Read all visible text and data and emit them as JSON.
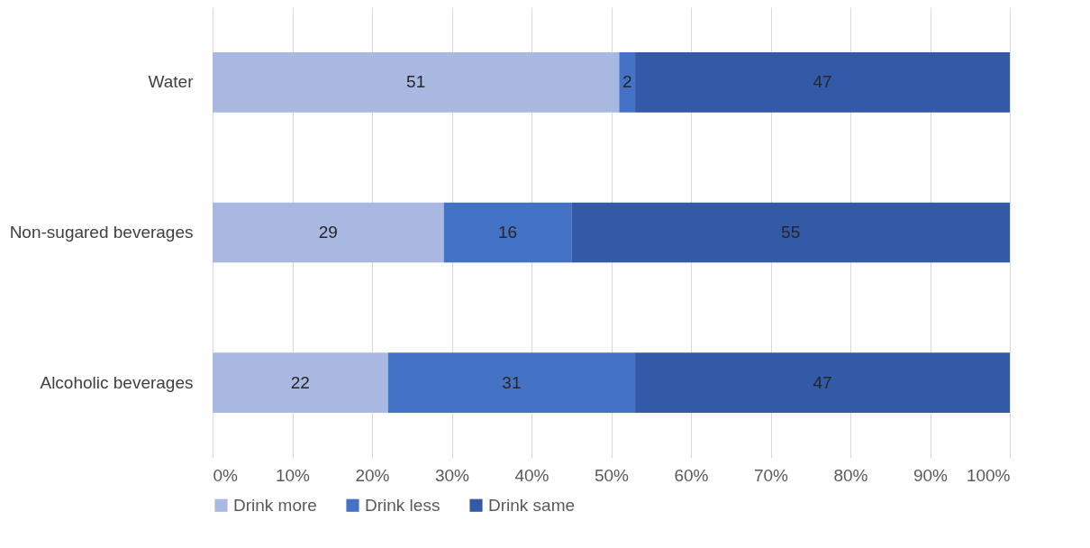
{
  "chart_data": {
    "type": "bar",
    "orientation": "horizontal",
    "stacked": true,
    "data_labels": true,
    "grid": "x",
    "legend": "bottom",
    "categories": [
      "Water",
      "Non-sugared beverages",
      "Alcoholic beverages"
    ],
    "series": [
      {
        "name": "Drink more",
        "color": "#a9b8e0",
        "values": [
          51,
          29,
          22
        ]
      },
      {
        "name": "Drink less",
        "color": "#4472c4",
        "values": [
          2,
          16,
          31
        ]
      },
      {
        "name": "Drink same",
        "color": "#335aa6",
        "values": [
          47,
          55,
          47
        ]
      }
    ],
    "xlim": [
      0,
      100
    ],
    "xticks": [
      {
        "value": 0,
        "label": "0%"
      },
      {
        "value": 10,
        "label": "10%"
      },
      {
        "value": 20,
        "label": "20%"
      },
      {
        "value": 30,
        "label": "30%"
      },
      {
        "value": 40,
        "label": "40%"
      },
      {
        "value": 50,
        "label": "50%"
      },
      {
        "value": 60,
        "label": "60%"
      },
      {
        "value": 70,
        "label": "70%"
      },
      {
        "value": 80,
        "label": "80%"
      },
      {
        "value": 90,
        "label": "90%"
      },
      {
        "value": 100,
        "label": "100%"
      }
    ]
  }
}
